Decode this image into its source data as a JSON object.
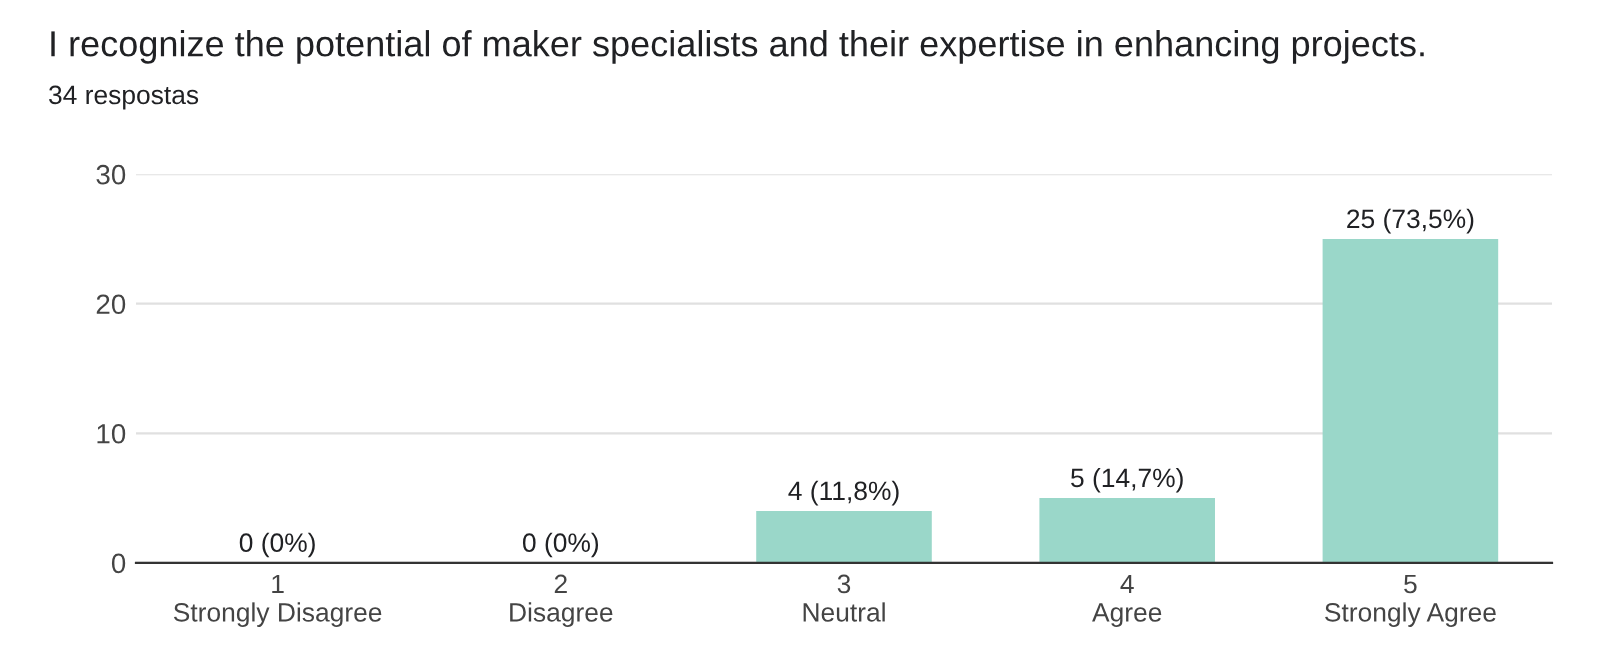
{
  "chart_data": {
    "type": "bar",
    "title": "I recognize the potential of maker specialists and their expertise in enhancing projects.",
    "subtitle": "34 respostas",
    "categories": [
      "1\nStrongly Disagree",
      "2\nDisagree",
      "3\nNeutral",
      "4\nAgree",
      "5\nStrongly Agree"
    ],
    "values": [
      0,
      0,
      4,
      5,
      25
    ],
    "value_labels": [
      "0 (0%)",
      "0 (0%)",
      "4 (11,8%)",
      "5 (14,7%)",
      "25 (73,5%)"
    ],
    "color": "#9ad7c9",
    "ylim": [
      0,
      30
    ],
    "yticks": [
      0,
      10,
      20,
      30
    ],
    "grid": "y"
  }
}
